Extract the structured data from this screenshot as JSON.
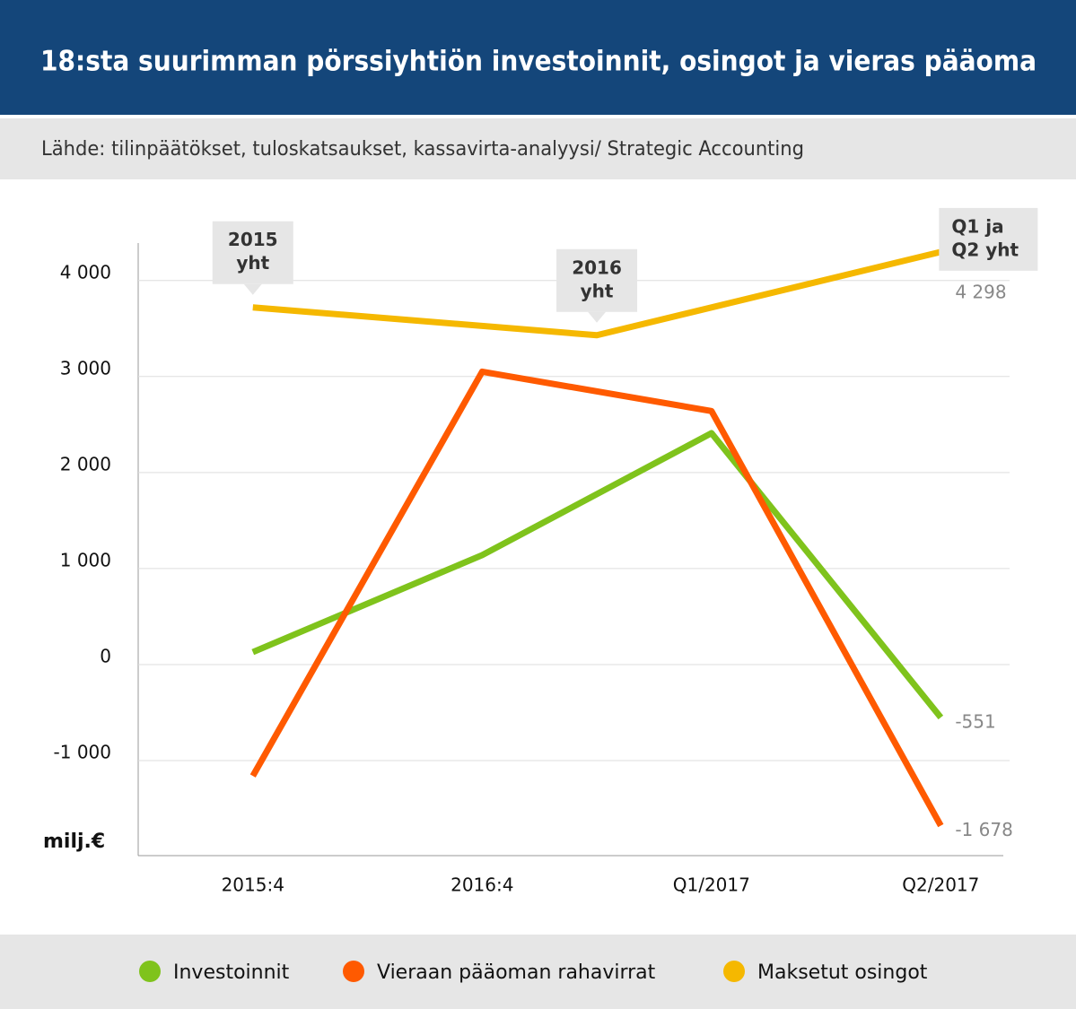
{
  "chart_data": {
    "type": "line",
    "title": "18:sta suurimman pörssiyhtiön investoinnit, osingot ja vieras pääoma",
    "subtitle": "Lähde: tilinpäätökset, tuloskatsaukset, kassavirta-analyysi/ Strategic Accounting",
    "y_label": "milj.€",
    "xlim": [
      -0.5,
      3.3
    ],
    "xticks": [
      {
        "value": 0,
        "label": "2015:4"
      },
      {
        "value": 1,
        "label": "2016:4"
      },
      {
        "value": 2,
        "label": "Q1/2017"
      },
      {
        "value": 3,
        "label": "Q2/2017"
      }
    ],
    "ylim": [
      -1990,
      4390
    ],
    "yticks": [
      {
        "value": -1000,
        "label": "-1 000"
      },
      0,
      {
        "value": 1000,
        "label": "1 000"
      },
      {
        "value": 2000,
        "label": "2 000"
      },
      {
        "value": 3000,
        "label": "3 000"
      },
      {
        "value": 4000,
        "label": "4 000"
      }
    ],
    "grid": true,
    "series": [
      {
        "name": "Investoinnit",
        "color": "#7fc31c",
        "x": [
          0,
          1,
          2,
          3
        ],
        "values": [
          130,
          1140,
          2410,
          -551
        ],
        "end_label": "-551"
      },
      {
        "name": "Vieraan pääoman rahavirrat",
        "color": "#ff5a00",
        "x": [
          0,
          1,
          2,
          3
        ],
        "values": [
          -1160,
          3050,
          2640,
          -1678
        ],
        "end_label": "-1 678"
      },
      {
        "name": "Maksetut osingot",
        "color": "#f5b800",
        "x": [
          0,
          1.5,
          3
        ],
        "values": [
          3720,
          3430,
          4298
        ],
        "end_label": "4 298",
        "point_labels": [
          [
            "2015",
            "yht"
          ],
          [
            "2016",
            "yht"
          ],
          [
            "Q1 ja",
            "Q2 yht"
          ]
        ]
      }
    ]
  }
}
